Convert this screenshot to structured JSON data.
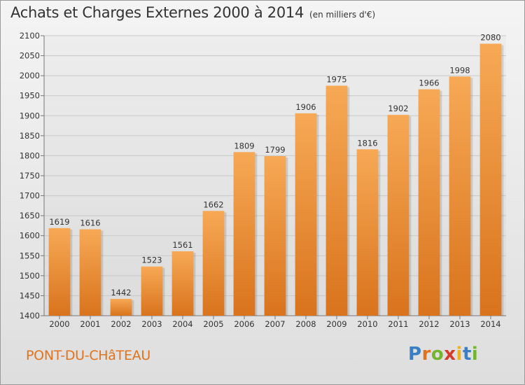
{
  "header": {
    "title": "Achats et Charges Externes 2000 à 2014",
    "unit": "(en milliers d'€)"
  },
  "footer": {
    "place": "PONT-DU-CHâTEAU",
    "brand": "Proxiti",
    "brand_letters": [
      {
        "ch": "P",
        "color": "#3a7fc4"
      },
      {
        "ch": "r",
        "color": "#e2731c"
      },
      {
        "ch": "o",
        "color": "#74b52e"
      },
      {
        "ch": "x",
        "color": "#d63a2a"
      },
      {
        "ch": "i",
        "color": "#f0b21b"
      },
      {
        "ch": "t",
        "color": "#3a7fc4"
      },
      {
        "ch": "i",
        "color": "#74b52e"
      }
    ]
  },
  "colors": {
    "bar_top": "#f7a955",
    "bar_bottom": "#d9731d",
    "grid": "#c9c9c9"
  },
  "chart_data": {
    "type": "bar",
    "title": "Achats et Charges Externes 2000 à 2014",
    "subtitle": "(en milliers d'€)",
    "categories": [
      "2000",
      "2001",
      "2002",
      "2003",
      "2004",
      "2005",
      "2006",
      "2007",
      "2008",
      "2009",
      "2010",
      "2011",
      "2012",
      "2013",
      "2014"
    ],
    "values": [
      1619,
      1616,
      1442,
      1523,
      1561,
      1662,
      1809,
      1799,
      1906,
      1975,
      1816,
      1902,
      1966,
      1998,
      2080
    ],
    "ylim": [
      1400,
      2100
    ],
    "yticks": [
      1400,
      1450,
      1500,
      1550,
      1600,
      1650,
      1700,
      1750,
      1800,
      1850,
      1900,
      1950,
      2000,
      2050,
      2100
    ],
    "grid": true,
    "xlabel": "",
    "ylabel": ""
  }
}
